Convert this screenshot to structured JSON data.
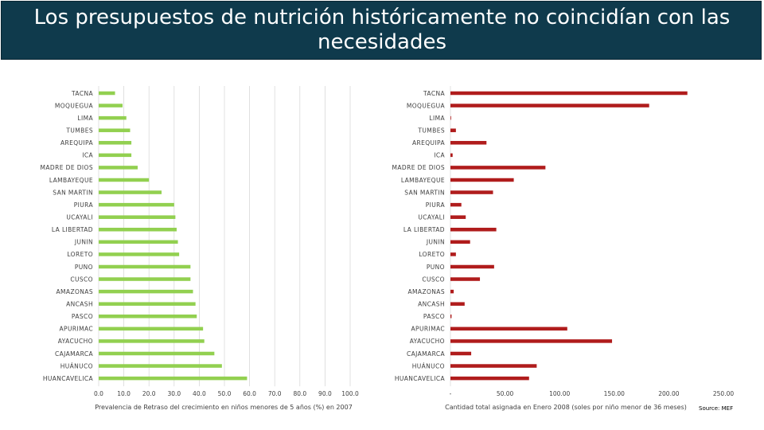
{
  "header": {
    "title": "Los presupuestos de nutrición históricamente no coincidían con las necesidades"
  },
  "source": "Source: MEF",
  "chart_data": [
    {
      "type": "bar",
      "orientation": "horizontal",
      "color": "#92d050",
      "categories": [
        "TACNA",
        "MOQUEGUA",
        "LIMA",
        "TUMBES",
        "AREQUIPA",
        "ICA",
        "MADRE DE DIOS",
        "LAMBAYEQUE",
        "SAN MARTIN",
        "PIURA",
        "UCAYALI",
        "LA LIBERTAD",
        "JUNIN",
        "LORETO",
        "PUNO",
        "CUSCO",
        "AMAZONAS",
        "ANCASH",
        "PASCO",
        "APURIMAC",
        "AYACUCHO",
        "CAJAMARCA",
        "HUÁNUCO",
        "HUANCAVELICA"
      ],
      "values": [
        6.5,
        9.5,
        11.0,
        12.5,
        13.0,
        13.0,
        15.5,
        20.0,
        25.0,
        30.0,
        30.5,
        31.0,
        31.5,
        32.0,
        36.5,
        36.5,
        37.5,
        38.5,
        39.0,
        41.5,
        42.0,
        46.0,
        49.0,
        59.0
      ],
      "xlim": [
        0,
        100
      ],
      "xticks": [
        "0.0",
        "10.0",
        "20.0",
        "30.0",
        "40.0",
        "50.0",
        "60.0",
        "70.0",
        "80.0",
        "90.0",
        "100.0"
      ],
      "xlabel": "Prevalencia de Retraso del crecimiento en niños menores de 5 años (%) en 2007",
      "grid": true
    },
    {
      "type": "bar",
      "orientation": "horizontal",
      "color": "#b01c1c",
      "categories": [
        "TACNA",
        "MOQUEGUA",
        "LIMA",
        "TUMBES",
        "AREQUIPA",
        "ICA",
        "MADRE DE DIOS",
        "LAMBAYEQUE",
        "SAN MARTIN",
        "PIURA",
        "UCAYALI",
        "LA LIBERTAD",
        "JUNIN",
        "LORETO",
        "PUNO",
        "CUSCO",
        "AMAZONAS",
        "ANCASH",
        "PASCO",
        "APURIMAC",
        "AYACUCHO",
        "CAJAMARCA",
        "HUÁNUCO",
        "HUANCAVELICA"
      ],
      "values": [
        217,
        182,
        0,
        5,
        33,
        2,
        87,
        58,
        39,
        10,
        14,
        42,
        18,
        5,
        40,
        27,
        3,
        13,
        1,
        107,
        148,
        19,
        79,
        72
      ],
      "xlim": [
        0,
        250
      ],
      "xticks": [
        "-",
        "50.00",
        "100.00",
        "150.00",
        "200.00",
        "250.00"
      ],
      "xlabel": "Cantidad total asignada en Enero 2008 (soles por niño menor de 36 meses)",
      "grid": false
    }
  ]
}
